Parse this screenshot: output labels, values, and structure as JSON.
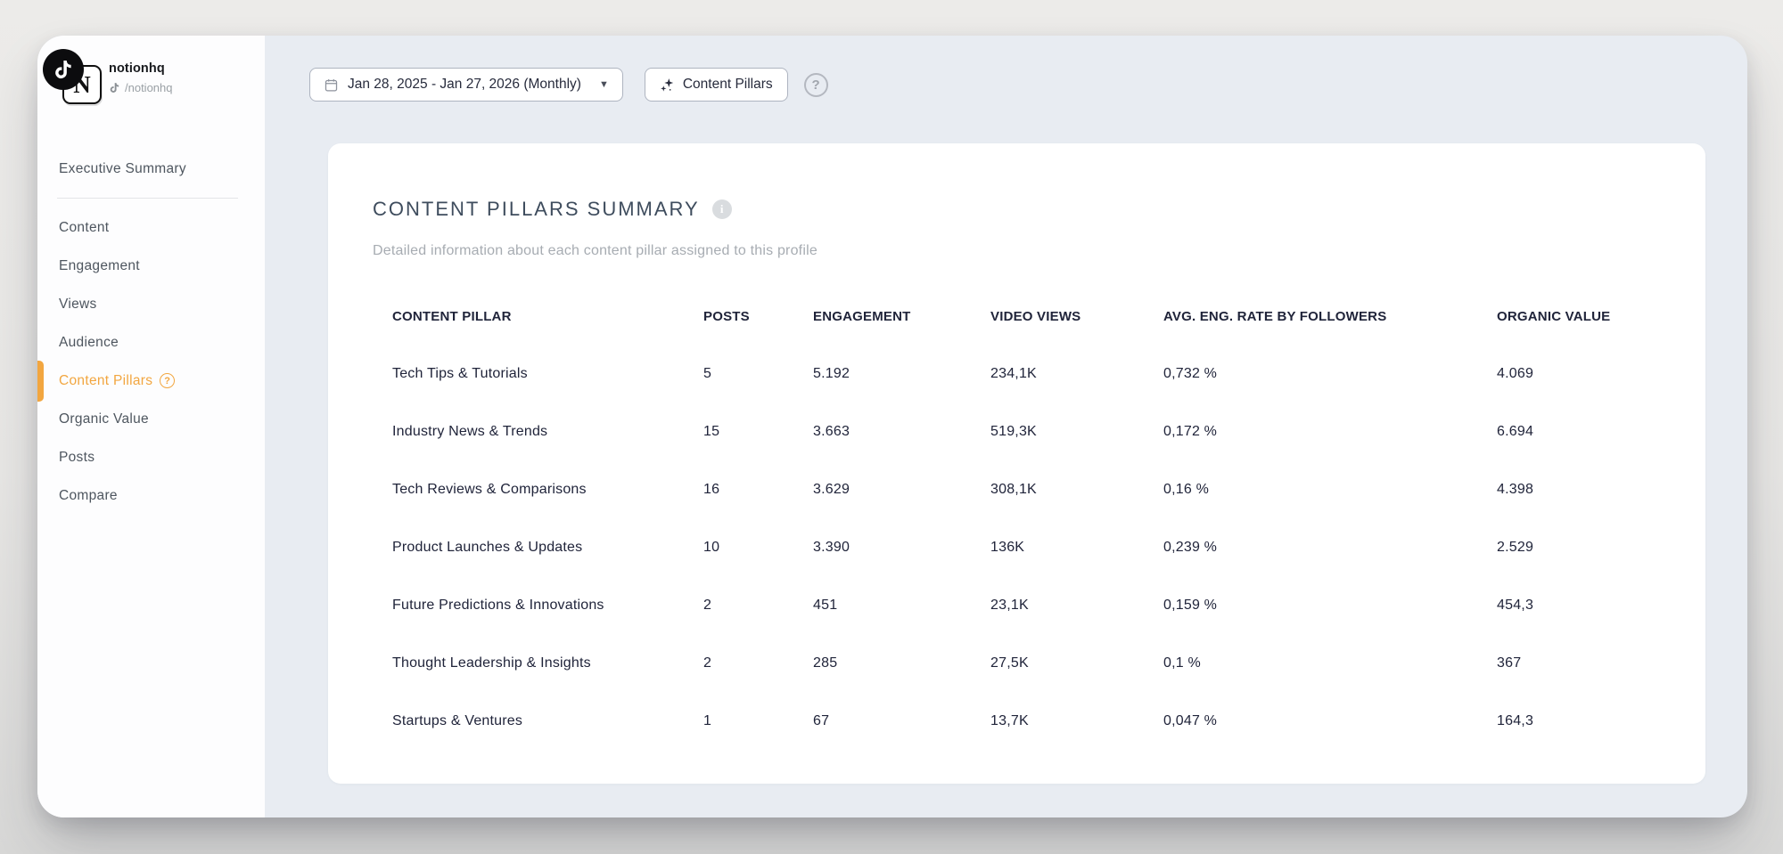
{
  "profile": {
    "name": "notionhq",
    "handle": "/notionhq",
    "logo_letter": "N"
  },
  "topbar": {
    "date_range": "Jan 28, 2025 - Jan 27, 2026 (Monthly)",
    "content_pillars_label": "Content Pillars",
    "help_glyph": "?"
  },
  "sidebar": {
    "items": [
      {
        "label": "Executive Summary",
        "active": false,
        "divider_after": true
      },
      {
        "label": "Content",
        "active": false
      },
      {
        "label": "Engagement",
        "active": false
      },
      {
        "label": "Views",
        "active": false
      },
      {
        "label": "Audience",
        "active": false
      },
      {
        "label": "Content Pillars",
        "active": true,
        "help_badge": "?"
      },
      {
        "label": "Organic Value",
        "active": false
      },
      {
        "label": "Posts",
        "active": false
      },
      {
        "label": "Compare",
        "active": false
      }
    ]
  },
  "card": {
    "title": "CONTENT PILLARS SUMMARY",
    "info_glyph": "i",
    "subtitle": "Detailed information about each content pillar assigned to this profile",
    "table": {
      "columns": [
        "CONTENT PILLAR",
        "POSTS",
        "ENGAGEMENT",
        "VIDEO VIEWS",
        "AVG. ENG. RATE BY FOLLOWERS",
        "ORGANIC VALUE"
      ],
      "rows": [
        [
          "Tech Tips & Tutorials",
          "5",
          "5.192",
          "234,1K",
          "0,732 %",
          "4.069"
        ],
        [
          "Industry News & Trends",
          "15",
          "3.663",
          "519,3K",
          "0,172 %",
          "6.694"
        ],
        [
          "Tech Reviews & Comparisons",
          "16",
          "3.629",
          "308,1K",
          "0,16 %",
          "4.398"
        ],
        [
          "Product Launches & Updates",
          "10",
          "3.390",
          "136K",
          "0,239 %",
          "2.529"
        ],
        [
          "Future Predictions & Innovations",
          "2",
          "451",
          "23,1K",
          "0,159 %",
          "454,3"
        ],
        [
          "Thought Leadership & Insights",
          "2",
          "285",
          "27,5K",
          "0,1 %",
          "367"
        ],
        [
          "Startups & Ventures",
          "1",
          "67",
          "13,7K",
          "0,047 %",
          "164,3"
        ]
      ]
    }
  },
  "colors": {
    "accent_orange": "#f2a640",
    "text_dark": "#20243a",
    "title_slate": "#3e4c5d",
    "subtitle_gray": "#a7acb2"
  }
}
